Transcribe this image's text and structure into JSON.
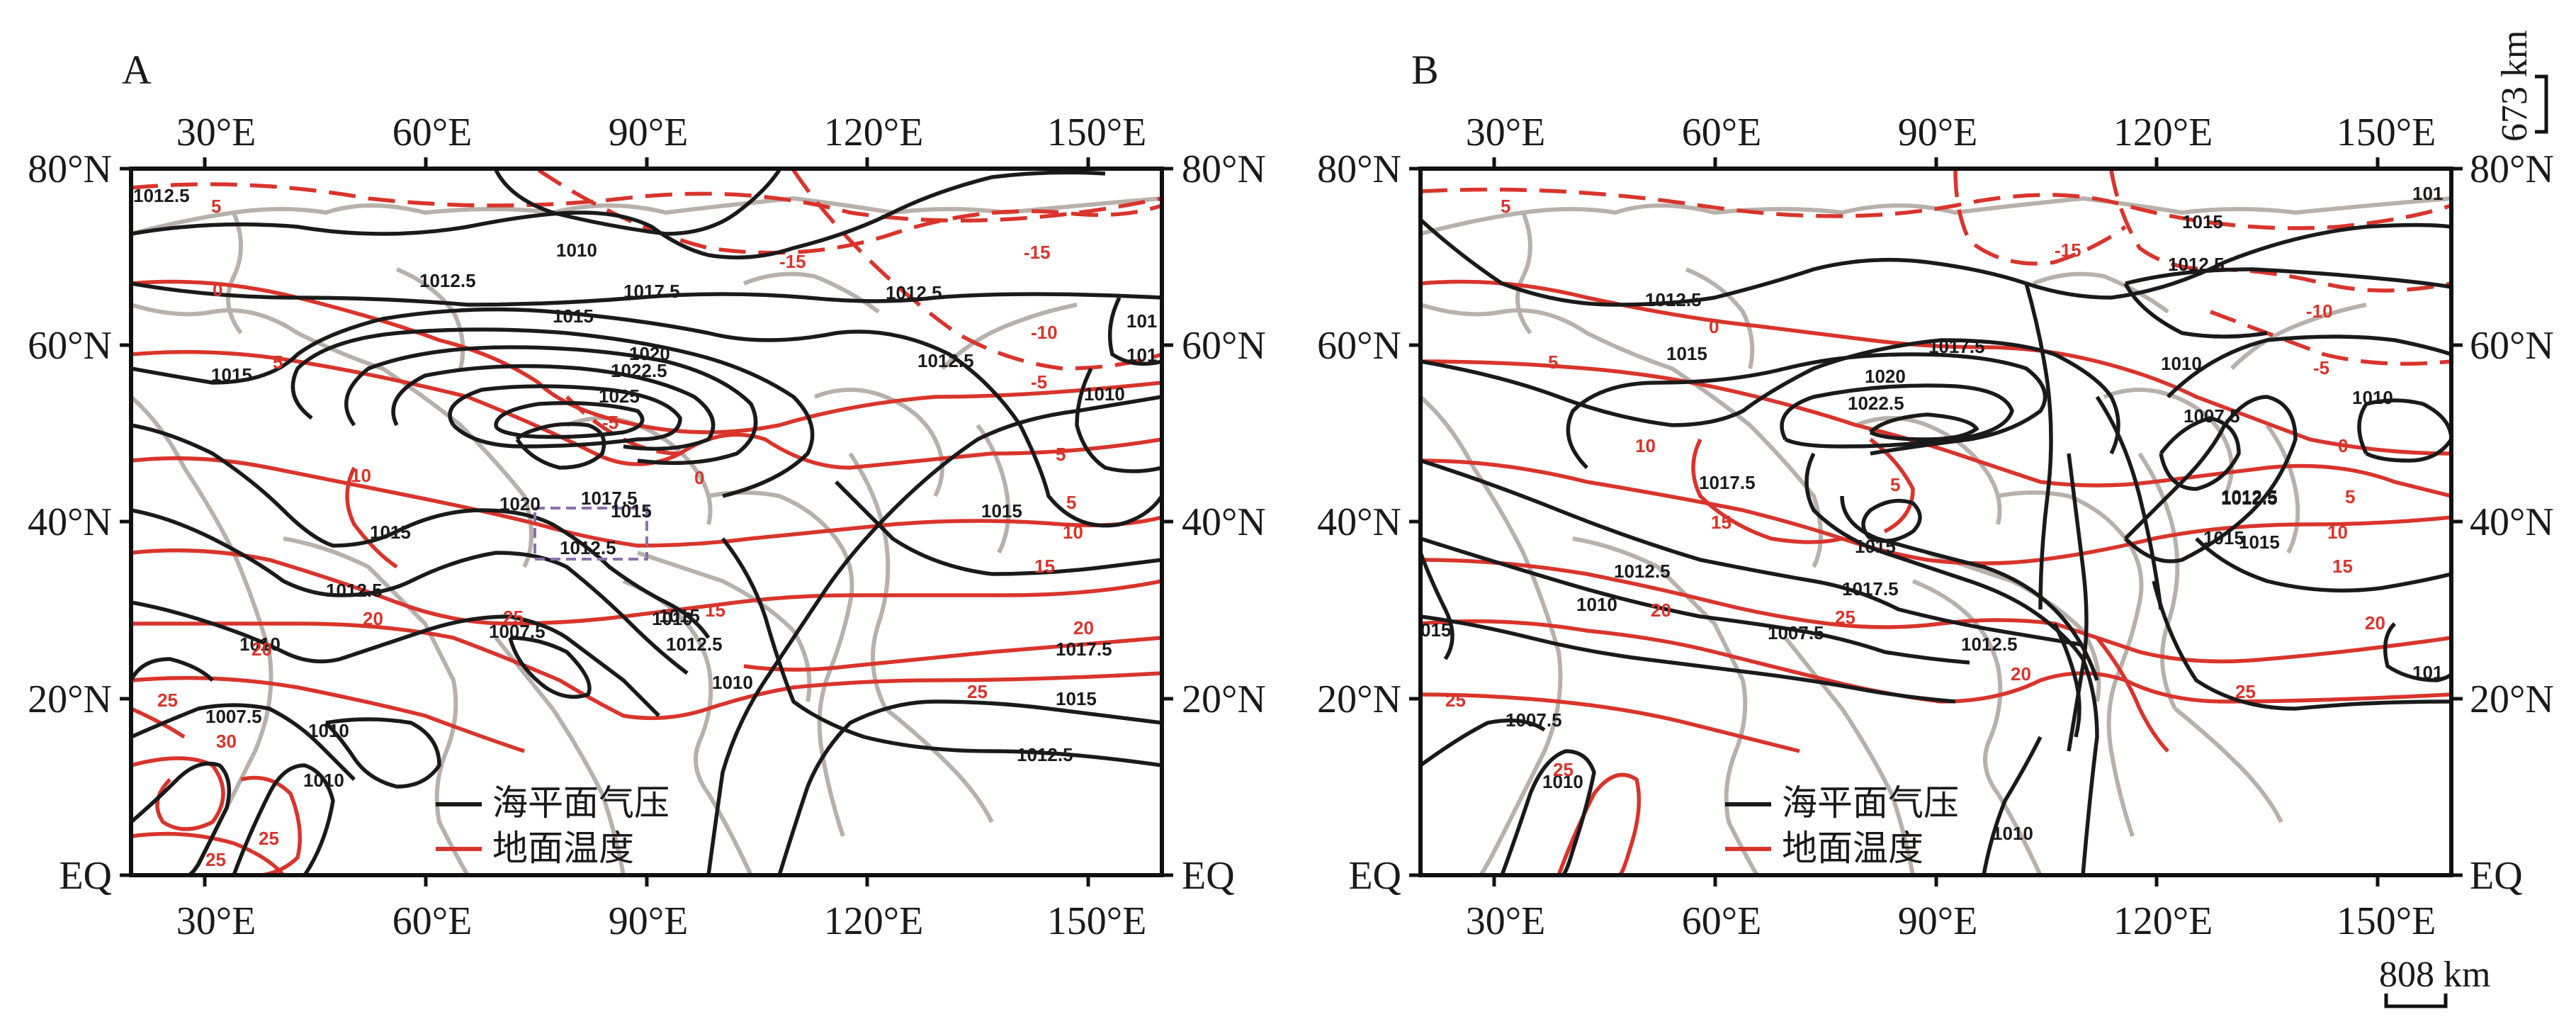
{
  "colors": {
    "pressure": "#1a1a1a",
    "temperature": "#d9342b",
    "coastline": "#b8b0aa",
    "frame": "#111111",
    "box": "#8a6fb0"
  },
  "axes": {
    "lon_ticks": [
      "30°E",
      "60°E",
      "90°E",
      "120°E",
      "150°E"
    ],
    "lat_ticks": [
      "80°N",
      "60°N",
      "40°N",
      "20°N",
      "EQ"
    ]
  },
  "legend": {
    "pressure": "海平面气压",
    "temperature": "地面温度"
  },
  "scale": {
    "vertical": "673 km",
    "horizontal": "808 km"
  },
  "panels": [
    {
      "letter": "A",
      "pressure_labels": [
        "1012.5",
        "1010",
        "1012.5",
        "1015",
        "1017.5",
        "1020",
        "1022.5",
        "1025",
        "1012.5",
        "1012.5",
        "1015",
        "1020",
        "1017.5",
        "1015",
        "1012.5",
        "1015",
        "1012.5",
        "1010",
        "1007.5",
        "1010",
        "1015",
        "1012.5",
        "1010",
        "1015",
        "1017.5",
        "1015",
        "1012.5",
        "1010",
        "1007.5",
        "1010",
        "1010",
        "101",
        "101"
      ],
      "temperature_labels": [
        "5",
        "-15",
        "-15",
        "0",
        "5",
        "-10",
        "-5",
        "-5",
        "0",
        "5",
        "10",
        "5",
        "10",
        "15",
        "20",
        "20",
        "25",
        "15",
        "25",
        "20",
        "25",
        "30",
        "25",
        "25"
      ]
    },
    {
      "letter": "B",
      "pressure_labels": [
        "1015",
        "1012.5",
        "1012.5",
        "1015",
        "1017.5",
        "1020",
        "1022.5",
        "1010",
        "1007.5",
        "1010",
        "1012.5",
        "1017.5",
        "1015",
        "1012.5",
        "1017.5",
        "1015",
        "1012.5",
        "1010",
        "1007.5",
        "1015",
        "1012.5",
        "1007.5",
        "1010",
        "1010",
        "101",
        "101",
        "015"
      ],
      "temperature_labels": [
        "5",
        "-15",
        "0",
        "5",
        "-10",
        "-5",
        "10",
        "5",
        "5",
        "15",
        "10",
        "15",
        "20",
        "20",
        "25",
        "25",
        "20",
        "25",
        "25",
        "0"
      ]
    }
  ]
}
